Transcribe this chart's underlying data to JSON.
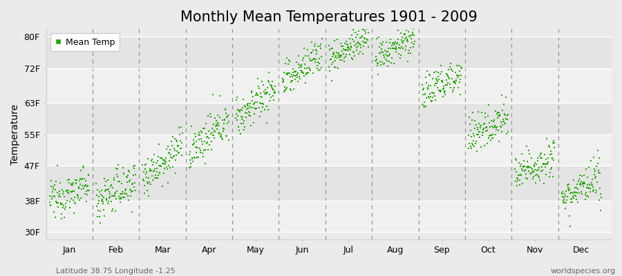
{
  "title": "Monthly Mean Temperatures 1901 - 2009",
  "ylabel": "Temperature",
  "yticks": [
    30,
    38,
    47,
    55,
    63,
    72,
    80
  ],
  "ytick_labels": [
    "30F",
    "38F",
    "47F",
    "55F",
    "63F",
    "72F",
    "80F"
  ],
  "ylim": [
    28,
    82
  ],
  "months": [
    "Jan",
    "Feb",
    "Mar",
    "Apr",
    "May",
    "Jun",
    "Jul",
    "Aug",
    "Sep",
    "Oct",
    "Nov",
    "Dec"
  ],
  "marker_color": "#22aa00",
  "background_color": "#ebebeb",
  "band_colors": [
    "#f2f2f2",
    "#e4e4e4",
    "#f2f2f2",
    "#e4e4e4",
    "#f2f2f2",
    "#e4e4e4"
  ],
  "title_fontsize": 15,
  "axis_label_fontsize": 10,
  "tick_fontsize": 9,
  "footer_left": "Latitude 38.75 Longitude -1.25",
  "footer_right": "worldspecies.org",
  "legend_label": "Mean Temp",
  "mean_temps_F_1901": [
    38,
    38,
    44,
    50,
    59,
    68,
    74,
    74,
    65,
    54,
    44,
    39
  ],
  "mean_temps_F_2009": [
    42,
    43,
    52,
    59,
    67,
    76,
    80,
    80,
    71,
    60,
    50,
    43
  ],
  "std_temps_F": [
    2.5,
    2.8,
    2.5,
    2.5,
    2.5,
    2.5,
    2.0,
    2.0,
    2.5,
    2.5,
    2.5,
    2.5
  ],
  "n_years": 109,
  "xlim": [
    0.5,
    12.65
  ]
}
